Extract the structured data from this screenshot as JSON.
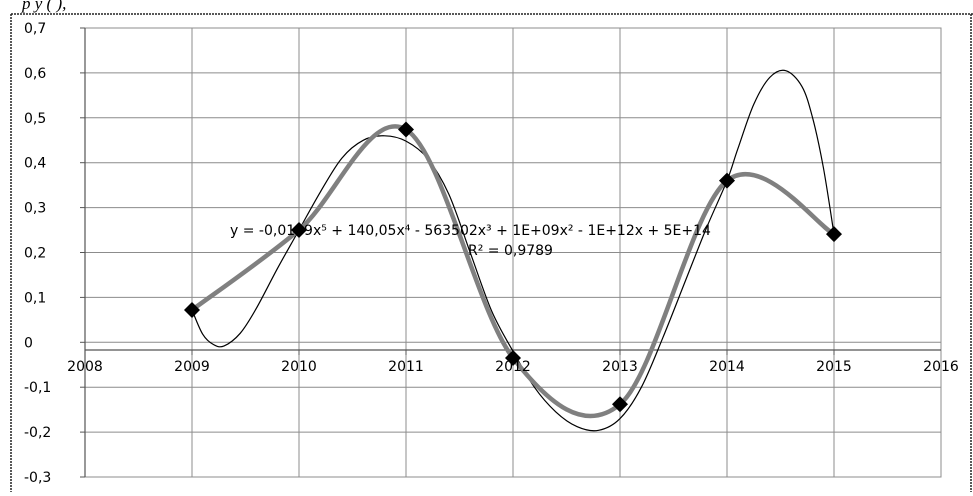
{
  "caption": "p                 y             (   ),",
  "chart_data": {
    "type": "scatter",
    "title": "",
    "xlabel": "",
    "ylabel": "",
    "xlim": [
      2008,
      2016
    ],
    "ylim": [
      -0.3,
      0.7
    ],
    "x_ticks": [
      "2008",
      "2009",
      "2010",
      "2011",
      "2012",
      "2013",
      "2014",
      "2015",
      "2016"
    ],
    "y_ticks": [
      "-0,3",
      "-0,2",
      "-0,1",
      "0",
      "0,1",
      "0,2",
      "0,3",
      "0,4",
      "0,5",
      "0,6",
      "0,7"
    ],
    "grid": true,
    "legend": "none",
    "series": [
      {
        "x": [
          2009,
          2010,
          2011,
          2012,
          2013,
          2014,
          2015
        ],
        "values": [
          0.072,
          0.25,
          0.474,
          -0.035,
          -0.138,
          0.36,
          0.241
        ],
        "marker": "diamond",
        "line": "smooth",
        "color": "#808080"
      }
    ],
    "trendline": {
      "type": "polynomial",
      "order": 5,
      "color": "#000000",
      "points": [
        [
          2009.0,
          0.072
        ],
        [
          2009.1,
          0.018
        ],
        [
          2009.2,
          -0.005
        ],
        [
          2009.3,
          -0.008
        ],
        [
          2009.45,
          0.02
        ],
        [
          2009.6,
          0.075
        ],
        [
          2009.8,
          0.165
        ],
        [
          2010.0,
          0.25
        ],
        [
          2010.2,
          0.335
        ],
        [
          2010.4,
          0.41
        ],
        [
          2010.6,
          0.45
        ],
        [
          2010.8,
          0.46
        ],
        [
          2011.0,
          0.448
        ],
        [
          2011.2,
          0.41
        ],
        [
          2011.4,
          0.33
        ],
        [
          2011.6,
          0.2
        ],
        [
          2011.8,
          0.07
        ],
        [
          2012.0,
          -0.02
        ],
        [
          2012.2,
          -0.1
        ],
        [
          2012.4,
          -0.155
        ],
        [
          2012.6,
          -0.188
        ],
        [
          2012.8,
          -0.196
        ],
        [
          2013.0,
          -0.17
        ],
        [
          2013.2,
          -0.1
        ],
        [
          2013.4,
          0.01
        ],
        [
          2013.6,
          0.13
        ],
        [
          2013.8,
          0.25
        ],
        [
          2014.0,
          0.36
        ],
        [
          2014.1,
          0.43
        ],
        [
          2014.25,
          0.53
        ],
        [
          2014.4,
          0.59
        ],
        [
          2014.55,
          0.605
        ],
        [
          2014.7,
          0.57
        ],
        [
          2014.8,
          0.5
        ],
        [
          2014.9,
          0.39
        ],
        [
          2015.0,
          0.241
        ]
      ],
      "equation": "y = -0,0139x⁵ + 140,05x⁴ - 563502x³ + 1E+09x² - 1E+12x + 5E+14",
      "r_squared": "R² = 0,9789"
    }
  }
}
